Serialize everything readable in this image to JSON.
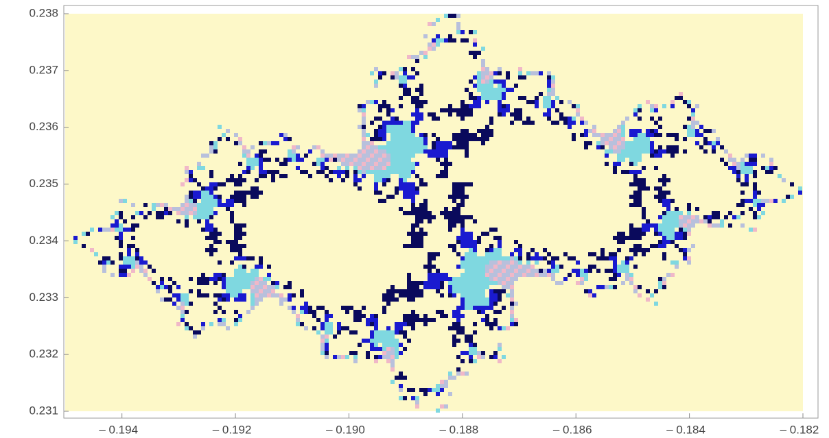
{
  "chart_data": {
    "type": "density",
    "xlim": [
      -0.195,
      -0.182
    ],
    "ylim": [
      0.231,
      0.238
    ],
    "xticks": [
      {
        "value": -0.194,
        "label": "– 0.194"
      },
      {
        "value": -0.192,
        "label": "– 0.192"
      },
      {
        "value": -0.19,
        "label": "– 0.190"
      },
      {
        "value": -0.188,
        "label": "– 0.188"
      },
      {
        "value": -0.186,
        "label": "– 0.186"
      },
      {
        "value": -0.184,
        "label": "– 0.184"
      },
      {
        "value": -0.182,
        "label": "– 0.182"
      }
    ],
    "yticks": [
      0.231,
      0.232,
      0.233,
      0.234,
      0.235,
      0.236,
      0.237,
      0.238
    ]
  }
}
